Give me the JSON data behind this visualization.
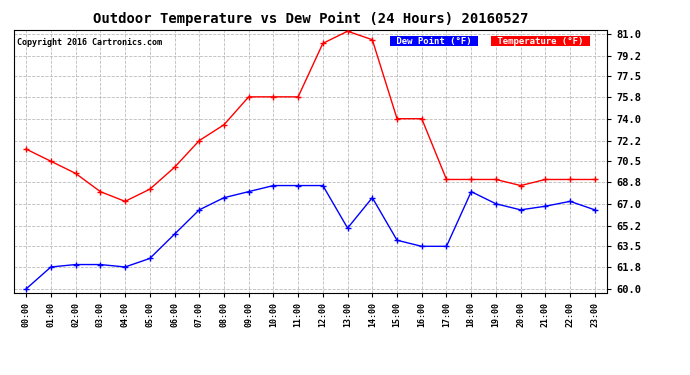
{
  "title": "Outdoor Temperature vs Dew Point (24 Hours) 20160527",
  "copyright": "Copyright 2016 Cartronics.com",
  "legend_dew": "Dew Point (°F)",
  "legend_temp": "Temperature (°F)",
  "hours": [
    "00:00",
    "01:00",
    "02:00",
    "03:00",
    "04:00",
    "05:00",
    "06:00",
    "07:00",
    "08:00",
    "09:00",
    "10:00",
    "11:00",
    "12:00",
    "13:00",
    "14:00",
    "15:00",
    "16:00",
    "17:00",
    "18:00",
    "19:00",
    "20:00",
    "21:00",
    "22:00",
    "23:00"
  ],
  "temperature": [
    71.5,
    70.5,
    69.5,
    68.0,
    67.2,
    68.2,
    70.0,
    72.2,
    73.5,
    75.8,
    75.8,
    75.8,
    80.2,
    81.2,
    80.5,
    74.0,
    74.0,
    69.0,
    69.0,
    69.0,
    68.5,
    69.0,
    69.0,
    69.0
  ],
  "dew_point": [
    60.0,
    61.8,
    62.0,
    62.0,
    61.8,
    62.5,
    64.5,
    66.5,
    67.5,
    68.0,
    68.5,
    68.5,
    68.5,
    65.0,
    67.5,
    64.0,
    63.5,
    63.5,
    68.0,
    67.0,
    66.5,
    66.8,
    67.2,
    66.5
  ],
  "temp_color": "#ff0000",
  "dew_color": "#0000ff",
  "ylim_min": 60.0,
  "ylim_max": 81.0,
  "yticks": [
    60.0,
    61.8,
    63.5,
    65.2,
    67.0,
    68.8,
    70.5,
    72.2,
    74.0,
    75.8,
    77.5,
    79.2,
    81.0
  ],
  "background_color": "#ffffff",
  "grid_color": "#bbbbbb",
  "marker": "+",
  "marker_size": 5,
  "linewidth": 1.0,
  "title_fontsize": 10,
  "legend_bg_dew": "#0000ff",
  "legend_bg_temp": "#ff0000"
}
